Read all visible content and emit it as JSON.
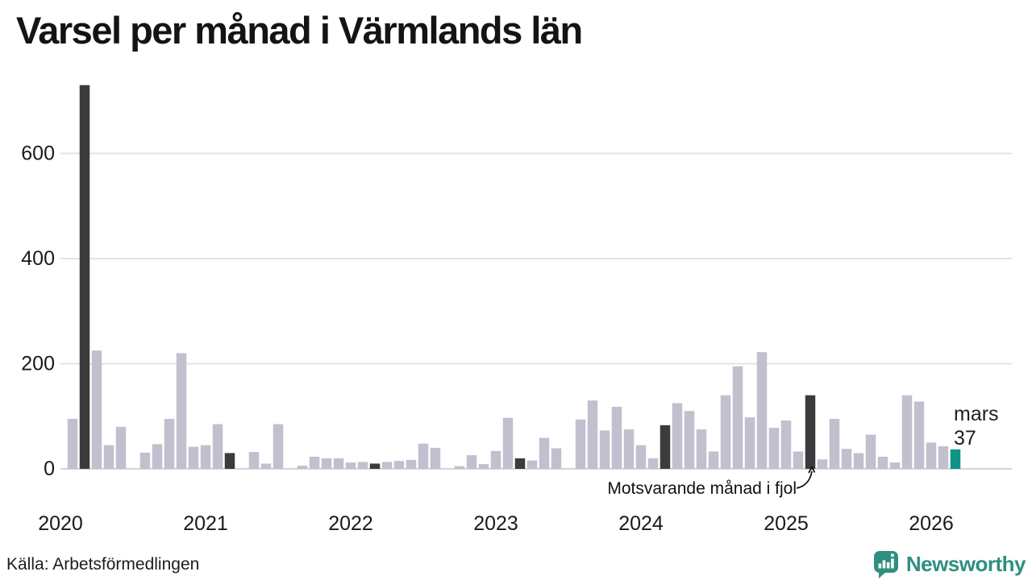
{
  "title": "Varsel per månad i Värmlands län",
  "source": "Källa: Arbetsförmedlingen",
  "annotation": {
    "text": "Motsvarande månad i fjol",
    "points_to_month": "2025-03"
  },
  "latest_label": {
    "month": "mars",
    "value": "37"
  },
  "branding": {
    "name": "Newsworthy",
    "logo_icon": "bar-chart-speech-bubble-icon"
  },
  "colors": {
    "bar": "#C1C0CE",
    "highlight": "#3B3B3D",
    "latest": "#0F9486",
    "grid": "#E3E3E3",
    "baseline": "#D4D4D4",
    "text": "#1A1A1A",
    "brand": "#2E8F7F"
  },
  "chart_data": {
    "type": "bar",
    "title": "Varsel per månad i Värmlands län",
    "ylabel": "",
    "xlabel": "",
    "ylim": [
      0,
      740
    ],
    "grid": "horizontal",
    "yticks": [
      0,
      200,
      400,
      600
    ],
    "xticks": [
      {
        "label": "2020",
        "month": "2020-01"
      },
      {
        "label": "2021",
        "month": "2021-01"
      },
      {
        "label": "2022",
        "month": "2022-01"
      },
      {
        "label": "2023",
        "month": "2023-01"
      },
      {
        "label": "2024",
        "month": "2024-01"
      },
      {
        "label": "2025",
        "month": "2025-01"
      },
      {
        "label": "2026",
        "month": "2026-01"
      }
    ],
    "months": [
      "2020-02",
      "2020-03",
      "2020-04",
      "2020-05",
      "2020-06",
      "2020-07",
      "2020-08",
      "2020-09",
      "2020-10",
      "2020-11",
      "2020-12",
      "2021-01",
      "2021-02",
      "2021-03",
      "2021-04",
      "2021-05",
      "2021-06",
      "2021-07",
      "2021-08",
      "2021-09",
      "2021-10",
      "2021-11",
      "2021-12",
      "2022-01",
      "2022-02",
      "2022-03",
      "2022-04",
      "2022-05",
      "2022-06",
      "2022-07",
      "2022-08",
      "2022-09",
      "2022-10",
      "2022-11",
      "2022-12",
      "2023-01",
      "2023-02",
      "2023-03",
      "2023-04",
      "2023-05",
      "2023-06",
      "2023-07",
      "2023-08",
      "2023-09",
      "2023-10",
      "2023-11",
      "2023-12",
      "2024-01",
      "2024-02",
      "2024-03",
      "2024-04",
      "2024-05",
      "2024-06",
      "2024-07",
      "2024-08",
      "2024-09",
      "2024-10",
      "2024-11",
      "2024-12",
      "2025-01",
      "2025-02",
      "2025-03",
      "2025-04",
      "2025-05",
      "2025-06",
      "2025-07",
      "2025-08",
      "2025-09",
      "2025-10",
      "2025-11",
      "2025-12",
      "2026-01",
      "2026-02",
      "2026-03"
    ],
    "values": [
      95,
      730,
      225,
      45,
      80,
      0,
      31,
      47,
      95,
      220,
      42,
      45,
      85,
      30,
      0,
      32,
      10,
      85,
      0,
      6,
      23,
      20,
      20,
      12,
      13,
      10,
      13,
      15,
      17,
      48,
      40,
      0,
      5,
      26,
      9,
      34,
      97,
      20,
      16,
      59,
      39,
      0,
      94,
      130,
      73,
      118,
      75,
      45,
      20,
      83,
      125,
      110,
      75,
      33,
      140,
      195,
      98,
      222,
      78,
      92,
      33,
      140,
      18,
      95,
      38,
      30,
      65,
      23,
      12,
      140,
      128,
      50,
      43,
      37
    ],
    "highlight_months": [
      "2020-03",
      "2021-03",
      "2022-03",
      "2023-03",
      "2024-03",
      "2025-03"
    ],
    "latest_month": "2026-03",
    "latest_value_label": {
      "line1": "mars",
      "line2": "37"
    }
  }
}
